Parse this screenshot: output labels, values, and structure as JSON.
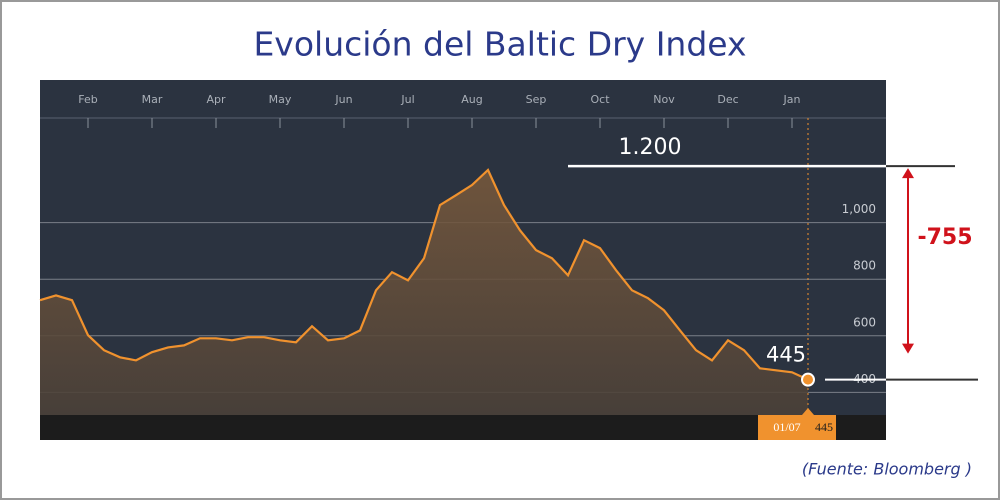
{
  "chart_data": {
    "type": "area",
    "title": "Evolución del Baltic Dry Index",
    "source": "(Fuente: Bloomberg )",
    "categories": [
      null,
      null,
      null,
      "Feb",
      null,
      null,
      null,
      "Mar",
      null,
      null,
      null,
      "Apr",
      null,
      null,
      null,
      "May",
      null,
      null,
      null,
      "Jun",
      null,
      null,
      null,
      "Jul",
      null,
      null,
      null,
      "Aug",
      null,
      null,
      null,
      "Sep",
      null,
      null,
      null,
      "Oct",
      null,
      null,
      null,
      "Nov",
      null,
      null,
      null,
      "Dec",
      null,
      null,
      null,
      "Jan",
      "01/07"
    ],
    "values": [
      726,
      743,
      726,
      602,
      549,
      524,
      513,
      542,
      559,
      566,
      591,
      591,
      584,
      595,
      595,
      584,
      577,
      634,
      584,
      591,
      619,
      761,
      825,
      796,
      874,
      1062,
      1097,
      1133,
      1186,
      1062,
      973,
      903,
      874,
      814,
      938,
      910,
      832,
      761,
      733,
      690,
      619,
      549,
      513,
      584,
      549,
      485,
      478,
      471,
      445
    ],
    "color": "#f0922e",
    "ylim": [
      320,
      1370
    ],
    "yticks": [
      400,
      600,
      800,
      {
        "value": 1000,
        "label": "1,000"
      }
    ],
    "grid": true,
    "reference": {
      "value": 1200,
      "label": "1.200"
    },
    "change": -755,
    "change_color": "#d0121b"
  }
}
